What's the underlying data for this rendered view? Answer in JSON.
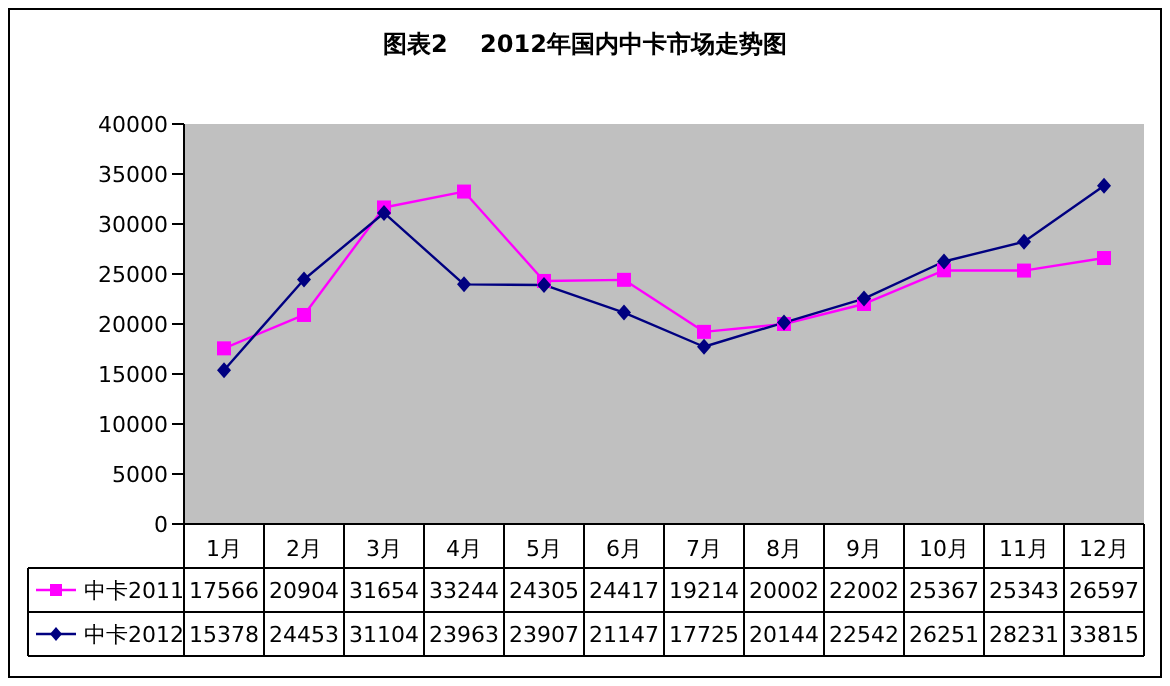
{
  "chart_data": {
    "type": "line",
    "title": "图表2　 2012年国内中卡市场走势图",
    "categories": [
      "1月",
      "2月",
      "3月",
      "4月",
      "5月",
      "6月",
      "7月",
      "8月",
      "9月",
      "10月",
      "11月",
      "12月"
    ],
    "series": [
      {
        "name": "中卡2011",
        "color": "#ff00ff",
        "marker": "square",
        "values": [
          17566,
          20904,
          31654,
          33244,
          24305,
          24417,
          19214,
          20002,
          22002,
          25367,
          25343,
          26597
        ]
      },
      {
        "name": "中卡2012",
        "color": "#000080",
        "marker": "diamond",
        "values": [
          15378,
          24453,
          31104,
          23963,
          23907,
          21147,
          17725,
          20144,
          22542,
          26251,
          28231,
          33815
        ]
      }
    ],
    "ylim": [
      0,
      40000
    ],
    "yticks": [
      0,
      5000,
      10000,
      15000,
      20000,
      25000,
      30000,
      35000,
      40000
    ],
    "grid": false,
    "legend": "bottom",
    "data_labels": true
  }
}
